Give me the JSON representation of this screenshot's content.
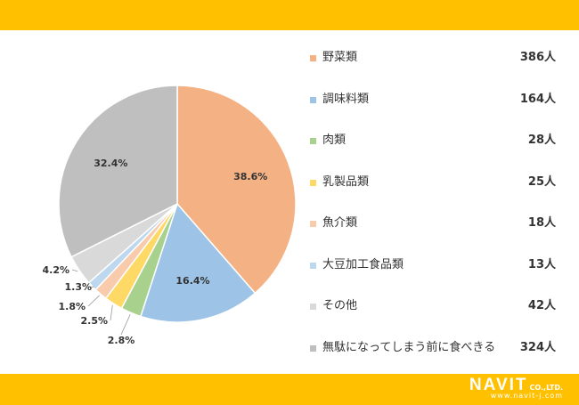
{
  "colors": {
    "band": "#FFC000",
    "leader": "#999999",
    "label": "#333333"
  },
  "logo": {
    "name": "NAVIT",
    "suffix": "CO.,LTD.",
    "url": "www.navit-j.com"
  },
  "chart_data": {
    "type": "pie",
    "title": "",
    "start_angle_deg": 0,
    "direction": "clockwise",
    "legend_position": "right",
    "slices": [
      {
        "name": "野菜類",
        "count": 386,
        "count_label": "386人",
        "percent": 38.6,
        "percent_label": "38.6%",
        "color": "#F4B183"
      },
      {
        "name": "調味料類",
        "count": 164,
        "count_label": "164人",
        "percent": 16.4,
        "percent_label": "16.4%",
        "color": "#9DC3E6"
      },
      {
        "name": "肉類",
        "count": 28,
        "count_label": "28人",
        "percent": 2.8,
        "percent_label": "2.8%",
        "color": "#A9D18E"
      },
      {
        "name": "乳製品類",
        "count": 25,
        "count_label": "25人",
        "percent": 2.5,
        "percent_label": "2.5%",
        "color": "#FFD966"
      },
      {
        "name": "魚介類",
        "count": 18,
        "count_label": "18人",
        "percent": 1.8,
        "percent_label": "1.8%",
        "color": "#F8CBAD"
      },
      {
        "name": "大豆加工食品類",
        "count": 13,
        "count_label": "13人",
        "percent": 1.3,
        "percent_label": "1.3%",
        "color": "#BDD7EE"
      },
      {
        "name": "その他",
        "count": 42,
        "count_label": "42人",
        "percent": 4.2,
        "percent_label": "4.2%",
        "color": "#D9D9D9"
      },
      {
        "name": "無駄になってしまう前に食べきる",
        "count": 324,
        "count_label": "324人",
        "percent": 32.4,
        "percent_label": "32.4%",
        "color": "#BFBFBF"
      }
    ]
  }
}
